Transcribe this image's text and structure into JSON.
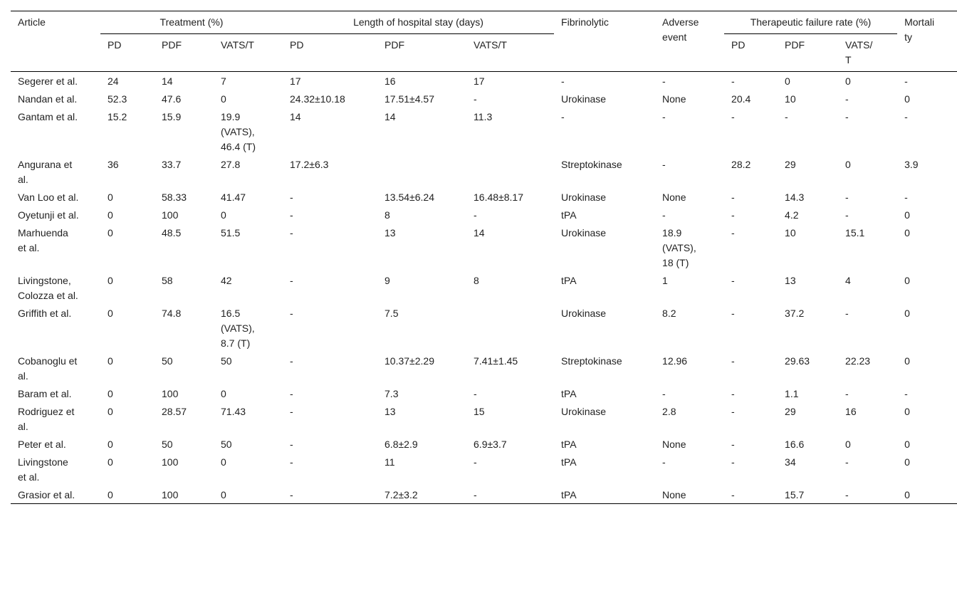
{
  "table": {
    "header": {
      "article": "Article",
      "groups": [
        {
          "label": "Treatment (%)",
          "columns": [
            "PD",
            "PDF",
            "VATS/T"
          ]
        },
        {
          "label": "Length of hospital stay (days)",
          "columns": [
            "PD",
            "PDF",
            "VATS/T"
          ]
        },
        {
          "label": "Therapeutic failure rate (%)",
          "columns": [
            "PD",
            "PDF",
            "VATS/T"
          ]
        }
      ],
      "fibrinolytic": "Fibrinolytic",
      "adverse": "Adverse event",
      "mortality": "Mortality"
    },
    "rows": [
      [
        "Segerer et al.",
        "24",
        "14",
        "7",
        "17",
        "16",
        "17",
        "-",
        "-",
        "-",
        "0",
        "0",
        "-"
      ],
      [
        "Nandan et al.",
        "52.3",
        "47.6",
        "0",
        "24.32±10.18",
        "17.51±4.57",
        "-",
        "Urokinase",
        "None",
        "20.4",
        "10",
        "-",
        "0"
      ],
      [
        "Gantam et al.",
        "15.2",
        "15.9",
        "19.9 (VATS), 46.4 (T)",
        "14",
        "14",
        "11.3",
        "-",
        "-",
        "-",
        "-",
        "-",
        "-"
      ],
      [
        "Angurana et al.",
        "36",
        "33.7",
        "27.8",
        "17.2±6.3",
        null,
        null,
        "Streptokinase",
        "-",
        "28.2",
        "29",
        "0",
        "3.9"
      ],
      [
        "Van Loo et al.",
        "0",
        "58.33",
        "41.47",
        "-",
        "13.54±6.24",
        "16.48±8.17",
        "Urokinase",
        "None",
        "-",
        "14.3",
        "-",
        "-"
      ],
      [
        "Oyetunji et al.",
        "0",
        "100",
        "0",
        "-",
        "8",
        "-",
        "tPA",
        "-",
        "-",
        "4.2",
        "-",
        "0"
      ],
      [
        "Marhuenda et al.",
        "0",
        "48.5",
        "51.5",
        "-",
        "13",
        "14",
        "Urokinase",
        "18.9 (VATS), 18 (T)",
        "-",
        "10",
        "15.1",
        "0"
      ],
      [
        "Livingstone, Colozza et al.",
        "0",
        "58",
        "42",
        "-",
        "9",
        "8",
        "tPA",
        "1",
        "-",
        "13",
        "4",
        "0"
      ],
      [
        "Griffith et al.",
        "0",
        "74.8",
        "16.5 (VATS), 8.7 (T)",
        "-",
        "7.5",
        null,
        "Urokinase",
        "8.2",
        "-",
        "37.2",
        "-",
        "0"
      ],
      [
        "Cobanoglu et al.",
        "0",
        "50",
        "50",
        "-",
        "10.37±2.29",
        "7.41±1.45",
        "Streptokinase",
        "12.96",
        "-",
        "29.63",
        "22.23",
        "0"
      ],
      [
        "Baram et al.",
        "0",
        "100",
        "0",
        "-",
        "7.3",
        "-",
        "tPA",
        "-",
        "-",
        "1.1",
        "-",
        "-"
      ],
      [
        "Rodriguez et al.",
        "0",
        "28.57",
        "71.43",
        "-",
        "13",
        "15",
        "Urokinase",
        "2.8",
        "-",
        "29",
        "16",
        "0"
      ],
      [
        "Peter et al.",
        "0",
        "50",
        "50",
        "-",
        "6.8±2.9",
        "6.9±3.7",
        "tPA",
        "None",
        "-",
        "16.6",
        "0",
        "0"
      ],
      [
        "Livingstone et al.",
        "0",
        "100",
        "0",
        "-",
        "11",
        "-",
        "tPA",
        "-",
        "-",
        "34",
        "-",
        "0"
      ],
      [
        "Grasior et al.",
        "0",
        "100",
        "0",
        "-",
        "7.2±3.2",
        "-",
        "tPA",
        "None",
        "-",
        "15.7",
        "-",
        "0"
      ]
    ]
  }
}
